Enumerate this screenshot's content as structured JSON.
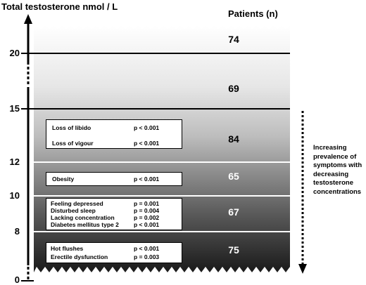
{
  "y_axis": {
    "label": "Total testosterone nmol / L",
    "ticks": [
      {
        "id": "20",
        "text": "20"
      },
      {
        "id": "15",
        "text": "15"
      },
      {
        "id": "12",
        "text": "12"
      },
      {
        "id": "10",
        "text": "10"
      },
      {
        "id": "8",
        "text": "8"
      },
      {
        "id": "0",
        "text": "0"
      }
    ]
  },
  "patients_header": "Patients (n)",
  "bands": [
    {
      "range": "above 20",
      "patients": "74"
    },
    {
      "range": "15-20",
      "patients": "69"
    },
    {
      "range": "12-15",
      "patients": "84"
    },
    {
      "range": "10-12",
      "patients": "65"
    },
    {
      "range": "8-10",
      "patients": "67"
    },
    {
      "range": "below 8",
      "patients": "75"
    }
  ],
  "symptom_groups": [
    {
      "items": [
        {
          "symptom": "Loss of libido",
          "p": "p < 0.001"
        },
        {
          "symptom": "Loss of vigour",
          "p": "p < 0.001"
        }
      ]
    },
    {
      "items": [
        {
          "symptom": "Obesity",
          "p": "p < 0.001"
        }
      ]
    },
    {
      "items": [
        {
          "symptom": "Feeling depressed",
          "p": "p = 0.001"
        },
        {
          "symptom": "Disturbed sleep",
          "p": "p = 0.004"
        },
        {
          "symptom": "Lacking concentration",
          "p": "p = 0.002"
        },
        {
          "symptom": "Diabetes mellitus type 2",
          "p": "p < 0.001"
        }
      ]
    },
    {
      "items": [
        {
          "symptom": "Hot flushes",
          "p": "p < 0.001"
        },
        {
          "symptom": "Erectile dysfunction",
          "p": "p = 0.003"
        }
      ]
    }
  ],
  "side_note": "Increasing prevalence of symptoms with decreasing testosterone concentrations"
}
